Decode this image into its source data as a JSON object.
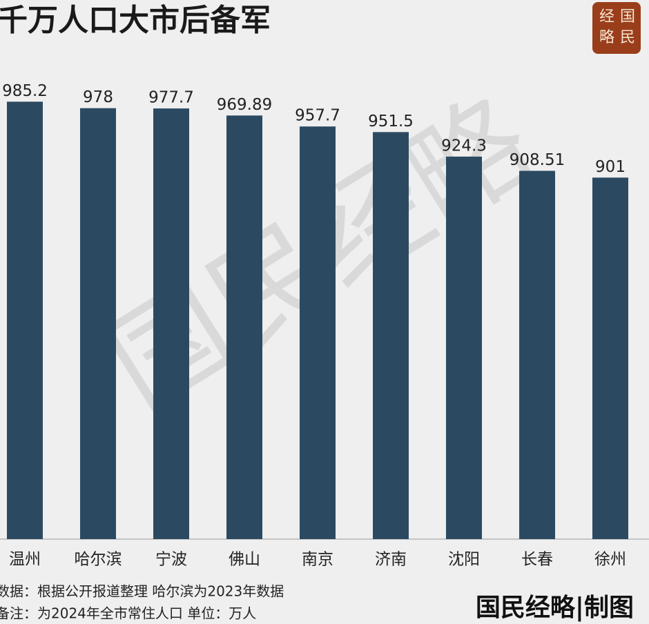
{
  "chart_data": {
    "type": "bar",
    "title": "千万人口大市后备军",
    "categories": [
      "温州",
      "哈尔滨",
      "宁波",
      "佛山",
      "南京",
      "济南",
      "沈阳",
      "长春",
      "徐州"
    ],
    "values": [
      985.2,
      978,
      977.7,
      969.89,
      957.7,
      951.5,
      924.3,
      908.51,
      901
    ],
    "color": "#2b4a62",
    "ylim": [
      500,
      1000
    ],
    "watermark": "国民经略",
    "logo": [
      "经",
      "国",
      "略",
      "民"
    ],
    "notes": [
      "数据：根据公开报道整理 哈尔滨为2023年数据",
      "备注：为2024年全市常住人口  单位：万人"
    ],
    "credit": "国民经略|制图"
  }
}
